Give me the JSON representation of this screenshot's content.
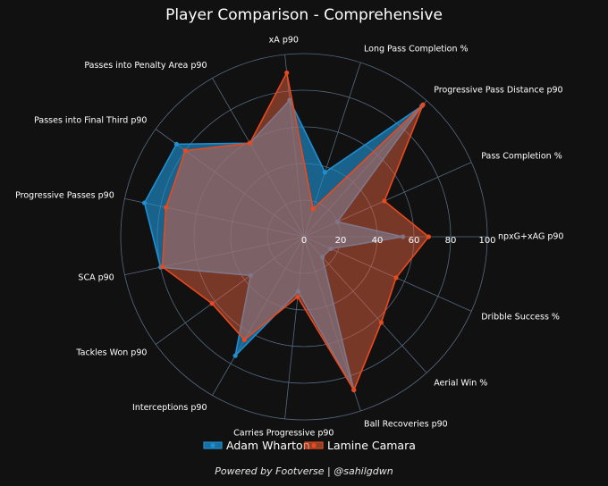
{
  "chart_data": {
    "type": "radar",
    "title": "Player Comparison - Comprehensive",
    "axes": [
      "npxG+xAG p90",
      "Pass Completion %",
      "Progressive Pass Distance p90",
      "Long Pass Completion %",
      "xA p90",
      "Passes into Penalty Area p90",
      "Passes into Final Third p90",
      "Progressive Passes p90",
      "SCA p90",
      "Tackles Won p90",
      "Interceptions p90",
      "Carries Progressive p90",
      "Ball Recoveries p90",
      "Aerial Win %",
      "Dribble Success %"
    ],
    "rlim": [
      0,
      100
    ],
    "radial_ticks": [
      0,
      20,
      40,
      60,
      80,
      100
    ],
    "grid": true,
    "legend_position": "bottom",
    "series": [
      {
        "name": "Adam Wharton",
        "color": "#1f8fd0",
        "values": [
          54,
          20,
          96,
          37,
          75,
          59,
          86,
          89,
          80,
          36,
          75,
          30,
          88,
          15,
          16
        ]
      },
      {
        "name": "Lamine Camara",
        "color": "#e8491d",
        "values": [
          68,
          48,
          97,
          16,
          90,
          59,
          80,
          77,
          79,
          62,
          65,
          33,
          88,
          63,
          55
        ]
      }
    ],
    "footer": "Powered by Footverse | @sahilgdwn"
  }
}
